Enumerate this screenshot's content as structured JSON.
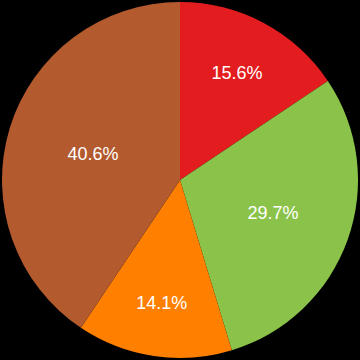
{
  "chart_data": {
    "type": "pie",
    "values": [
      15.6,
      29.7,
      14.1,
      40.6
    ],
    "value_labels": [
      "15.6%",
      "29.7%",
      "14.1%",
      "40.6%"
    ],
    "colors": [
      "#e31d1f",
      "#8bc34a",
      "#ff8000",
      "#b45a2f"
    ],
    "data_labels": true
  }
}
